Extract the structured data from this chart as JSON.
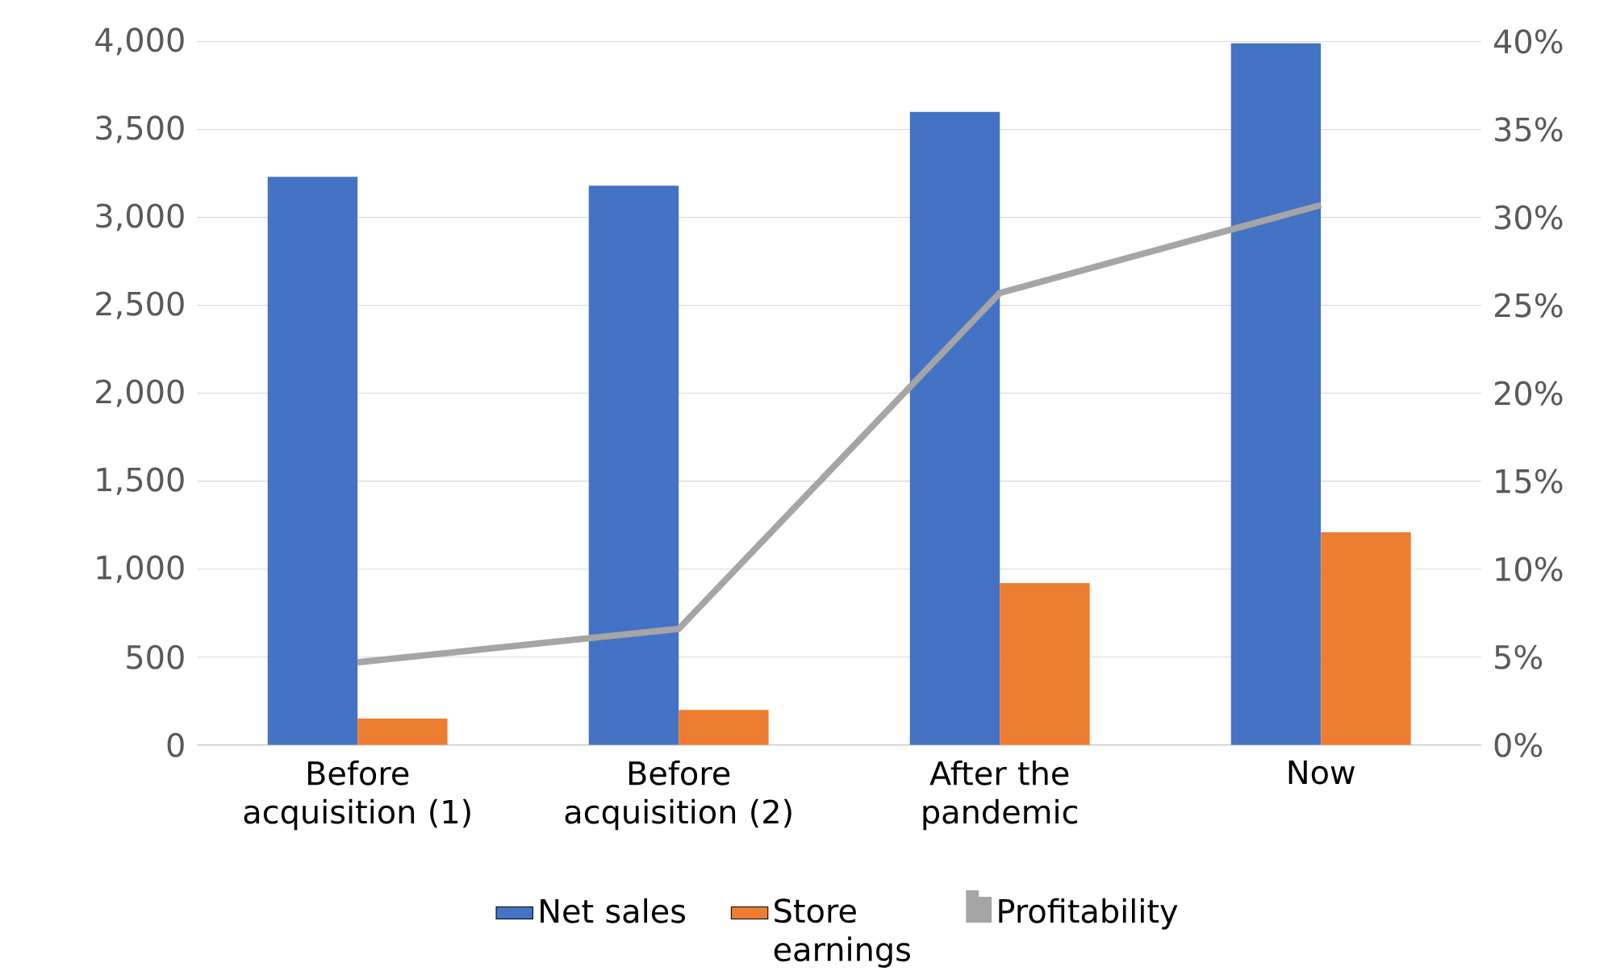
{
  "chart_data": {
    "type": "bar",
    "categories": [
      "Before acquisition (1)",
      "Before acquisition (2)",
      "After the pandemic",
      "Now"
    ],
    "series": [
      {
        "name": "Net sales",
        "color": "#4472c4",
        "values": [
          3230,
          3180,
          3600,
          3990
        ]
      },
      {
        "name": "Store earnings",
        "color": "#ed7d31",
        "values": [
          150,
          200,
          920,
          1210
        ]
      },
      {
        "name": "Profitability",
        "type": "line",
        "axis": "y2",
        "color": "#a5a5a5",
        "values": [
          4.7,
          6.6,
          25.7,
          30.7
        ]
      }
    ],
    "ylim": [
      0,
      4000
    ],
    "yticks": [
      {
        "value": 0,
        "label": "0"
      },
      {
        "value": 500,
        "label": "500"
      },
      {
        "value": 1000,
        "label": "1,000"
      },
      {
        "value": 1500,
        "label": "1,500"
      },
      {
        "value": 2000,
        "label": "2,000"
      },
      {
        "value": 2500,
        "label": "2,500"
      },
      {
        "value": 3000,
        "label": "3,000"
      },
      {
        "value": 3500,
        "label": "3,500"
      },
      {
        "value": 4000,
        "label": "4,000"
      }
    ],
    "y2lim": [
      0,
      40
    ],
    "y2ticks": [
      {
        "value": 0,
        "label": "0%"
      },
      {
        "value": 5,
        "label": "5%"
      },
      {
        "value": 10,
        "label": "10%"
      },
      {
        "value": 15,
        "label": "15%"
      },
      {
        "value": 20,
        "label": "20%"
      },
      {
        "value": 25,
        "label": "25%"
      },
      {
        "value": 30,
        "label": "30%"
      },
      {
        "value": 35,
        "label": "35%"
      },
      {
        "value": 40,
        "label": "40%"
      }
    ],
    "grid": "y",
    "legend": "bottom",
    "marker": "none",
    "line_style": "solid"
  }
}
